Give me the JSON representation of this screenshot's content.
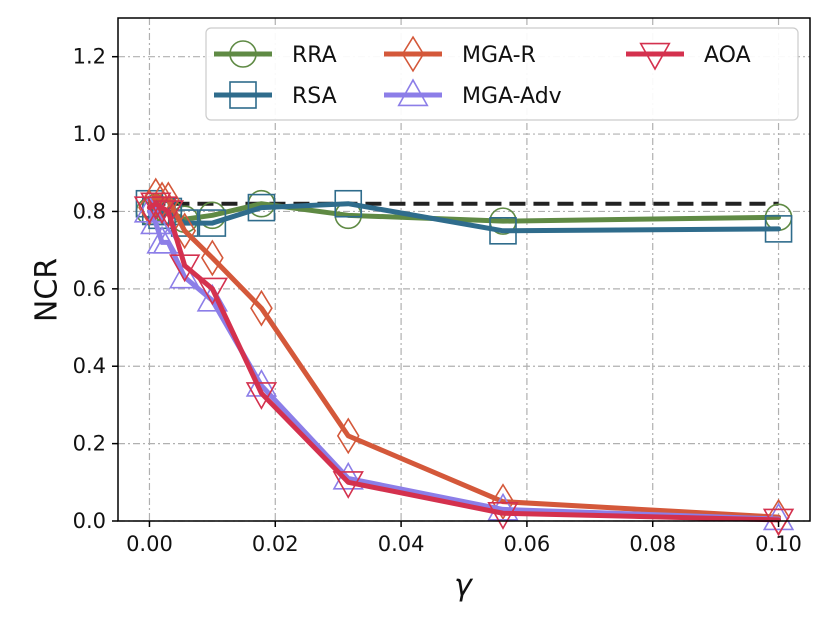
{
  "chart_data": {
    "type": "line",
    "title": "",
    "xlabel": "γ",
    "ylabel": "NCR",
    "xlim": [
      -0.005,
      0.105
    ],
    "ylim": [
      0.0,
      1.3
    ],
    "xticks": [
      0.0,
      0.02,
      0.04,
      0.06,
      0.08,
      0.1
    ],
    "xtick_labels": [
      "0.00",
      "0.02",
      "0.04",
      "0.06",
      "0.08",
      "0.10"
    ],
    "yticks": [
      0.0,
      0.2,
      0.4,
      0.6,
      0.8,
      1.0,
      1.2
    ],
    "ytick_labels": [
      "0.0",
      "0.2",
      "0.4",
      "0.6",
      "0.8",
      "1.0",
      "1.2"
    ],
    "grid": true,
    "legend_position": "top-right",
    "reference_line": {
      "y": 0.82,
      "style": "dashed",
      "color": "#222222"
    },
    "x": [
      0.0,
      0.001,
      0.002,
      0.003,
      0.0056,
      0.01,
      0.0178,
      0.0316,
      0.0562,
      0.1
    ],
    "series": [
      {
        "name": "RRA",
        "color": "#5f8a44",
        "marker": "circle",
        "values": [
          0.8,
          0.81,
          0.8,
          0.8,
          0.78,
          0.79,
          0.82,
          0.79,
          0.775,
          0.785
        ]
      },
      {
        "name": "RSA",
        "color": "#2f6c8c",
        "marker": "square",
        "values": [
          0.82,
          0.8,
          0.79,
          0.8,
          0.77,
          0.77,
          0.81,
          0.82,
          0.75,
          0.755
        ]
      },
      {
        "name": "MGA-R",
        "color": "#d4583a",
        "marker": "diamond",
        "values": [
          0.81,
          0.84,
          0.83,
          0.83,
          0.75,
          0.68,
          0.55,
          0.22,
          0.05,
          0.01
        ]
      },
      {
        "name": "MGA-Adv",
        "color": "#8c7ee8",
        "marker": "triangle-up",
        "values": [
          0.8,
          0.77,
          0.72,
          0.72,
          0.63,
          0.57,
          0.35,
          0.11,
          0.03,
          0.005
        ]
      },
      {
        "name": "AOA",
        "color": "#d4314e",
        "marker": "triangle-down",
        "values": [
          0.81,
          0.82,
          0.81,
          0.8,
          0.66,
          0.6,
          0.33,
          0.1,
          0.02,
          0.003
        ]
      }
    ]
  }
}
